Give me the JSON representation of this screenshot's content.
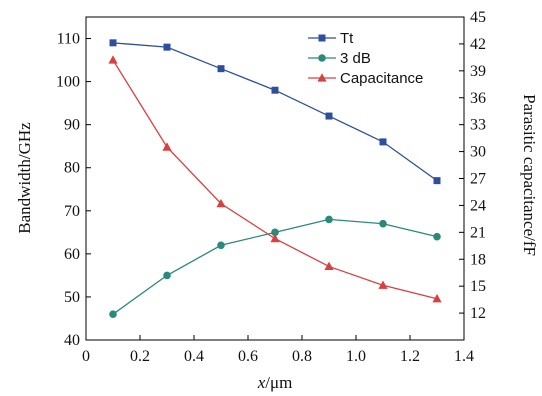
{
  "chart_data": {
    "type": "line",
    "xlabel_italic": "x",
    "xlabel_rest": "/μm",
    "ylabel_left": "Bandwidth/GHz",
    "ylabel_right": "Parasitic capacitance/fF",
    "xlim": [
      0,
      1.4
    ],
    "ylim_left": [
      40,
      115
    ],
    "ylim_right": [
      9,
      45
    ],
    "x_ticks": [
      "0",
      "0.2",
      "0.4",
      "0.6",
      "0.8",
      "1.0",
      "1.2",
      "1.4"
    ],
    "y_left_ticks": [
      "40",
      "50",
      "60",
      "70",
      "80",
      "90",
      "100",
      "110"
    ],
    "y_right_ticks": [
      "12",
      "15",
      "18",
      "21",
      "24",
      "27",
      "30",
      "33",
      "36",
      "39",
      "42",
      "45"
    ],
    "x": [
      0.1,
      0.3,
      0.5,
      0.7,
      0.9,
      1.1,
      1.3
    ],
    "legend_position": "top-right",
    "series": [
      {
        "name": "Tt",
        "axis": "left",
        "marker": "square",
        "color": "#2e4f9e",
        "values": [
          109,
          108,
          103,
          98,
          92,
          86,
          77
        ]
      },
      {
        "name": "3 dB",
        "axis": "left",
        "marker": "circle",
        "color": "#2a8a7a",
        "values": [
          46,
          55,
          62,
          65,
          68,
          67,
          64
        ]
      },
      {
        "name": "Capacitance",
        "axis": "right",
        "marker": "triangle",
        "color": "#d94040",
        "values": [
          40.2,
          30.5,
          24.2,
          20.3,
          17.2,
          15.1,
          13.6
        ]
      }
    ]
  }
}
